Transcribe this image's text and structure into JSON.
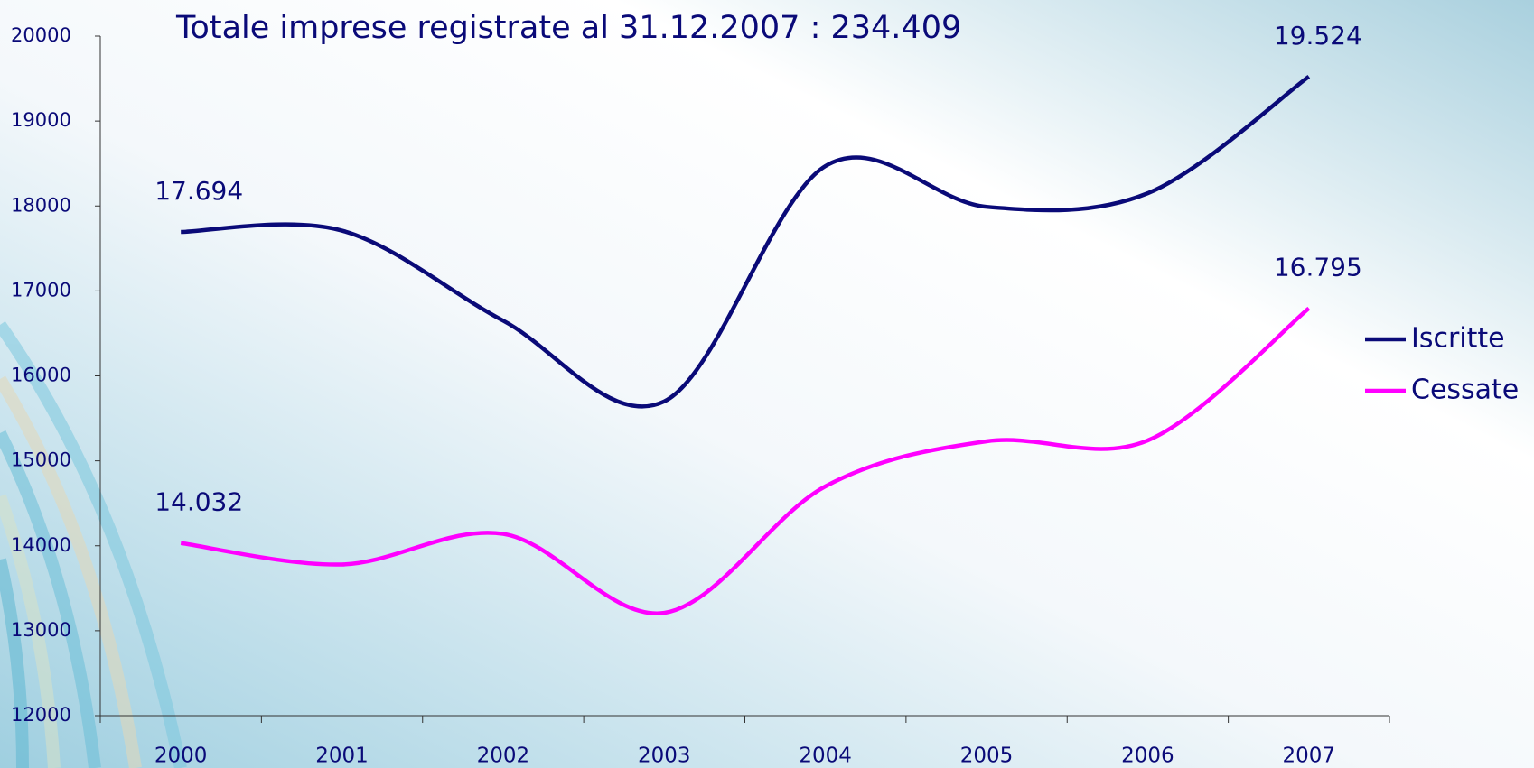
{
  "chart_data": {
    "type": "line",
    "title": "Totale imprese registrate al 31.12.2007 : 234.409",
    "categories": [
      "2000",
      "2001",
      "2002",
      "2003",
      "2004",
      "2005",
      "2006",
      "2007"
    ],
    "series": [
      {
        "name": "Iscritte",
        "color": "#0a0a78",
        "values": [
          17694,
          17710,
          16650,
          15700,
          18470,
          17990,
          18150,
          19524
        ],
        "value_labels": [
          "17.694",
          null,
          null,
          null,
          null,
          null,
          null,
          "19.524"
        ]
      },
      {
        "name": "Cessate",
        "color": "#ff00ff",
        "values": [
          14032,
          13780,
          14140,
          13210,
          14700,
          15230,
          15240,
          16795
        ],
        "value_labels": [
          "14.032",
          null,
          null,
          null,
          null,
          null,
          null,
          "16.795"
        ]
      }
    ],
    "ylim": [
      12000,
      20000
    ],
    "yticks": [
      12000,
      13000,
      14000,
      15000,
      16000,
      17000,
      18000,
      19000,
      20000
    ],
    "legend": "right"
  }
}
